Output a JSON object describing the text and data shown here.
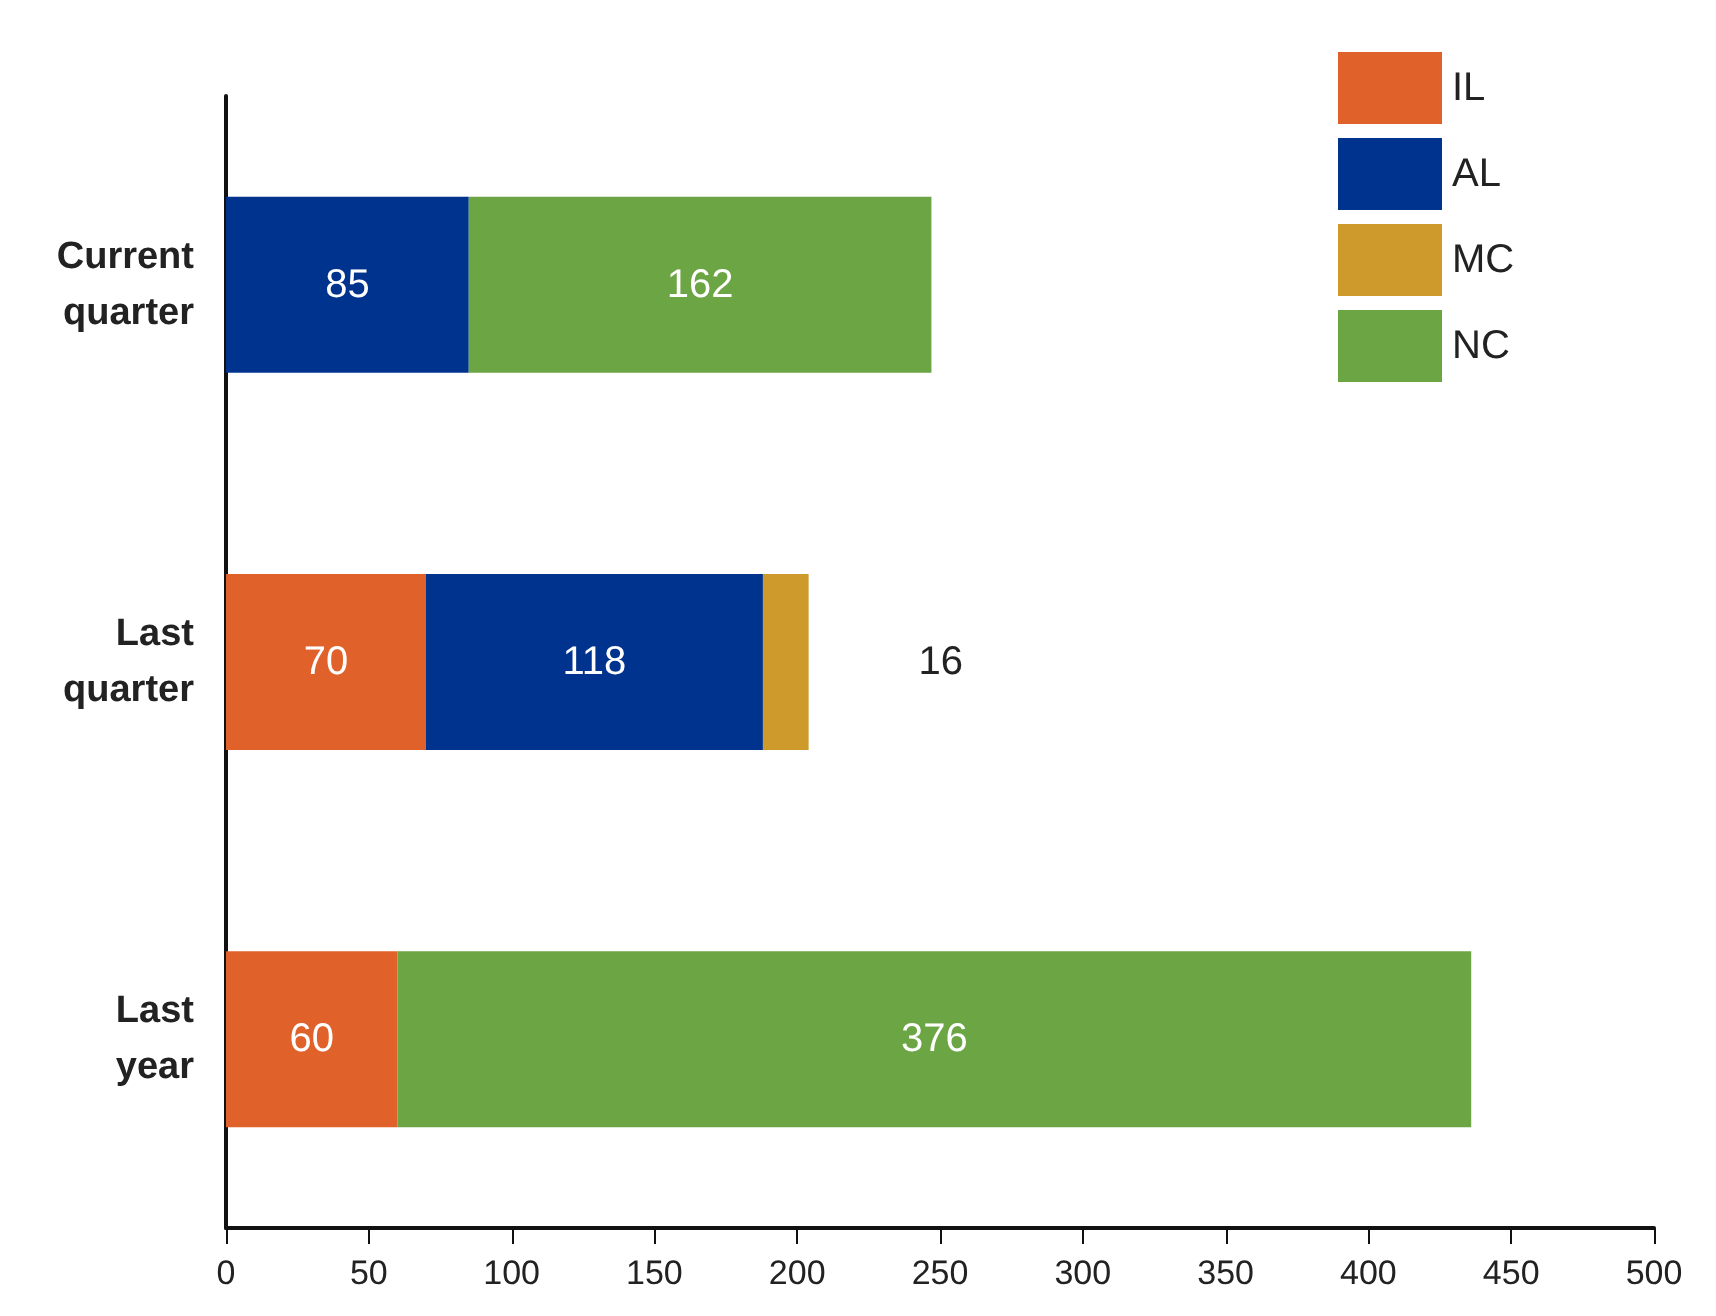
{
  "chart_data": {
    "type": "bar",
    "orientation": "horizontal",
    "stacked": true,
    "categories": [
      "Current\nquarter",
      "Last\nquarter",
      "Last\nyear"
    ],
    "series": [
      {
        "name": "IL",
        "color": "#e0612a",
        "values": [
          null,
          70,
          60
        ]
      },
      {
        "name": "AL",
        "color": "#00338d",
        "values": [
          85,
          118,
          null
        ]
      },
      {
        "name": "MC",
        "color": "#cf9a2c",
        "values": [
          null,
          16,
          null
        ]
      },
      {
        "name": "NC",
        "color": "#6ca544",
        "values": [
          162,
          null,
          376
        ]
      }
    ],
    "xlim": [
      0,
      500
    ],
    "xticks": [
      0,
      50,
      100,
      150,
      200,
      250,
      300,
      350,
      400,
      450,
      500
    ],
    "grid": false,
    "legend": "top right",
    "data_labels": true
  }
}
